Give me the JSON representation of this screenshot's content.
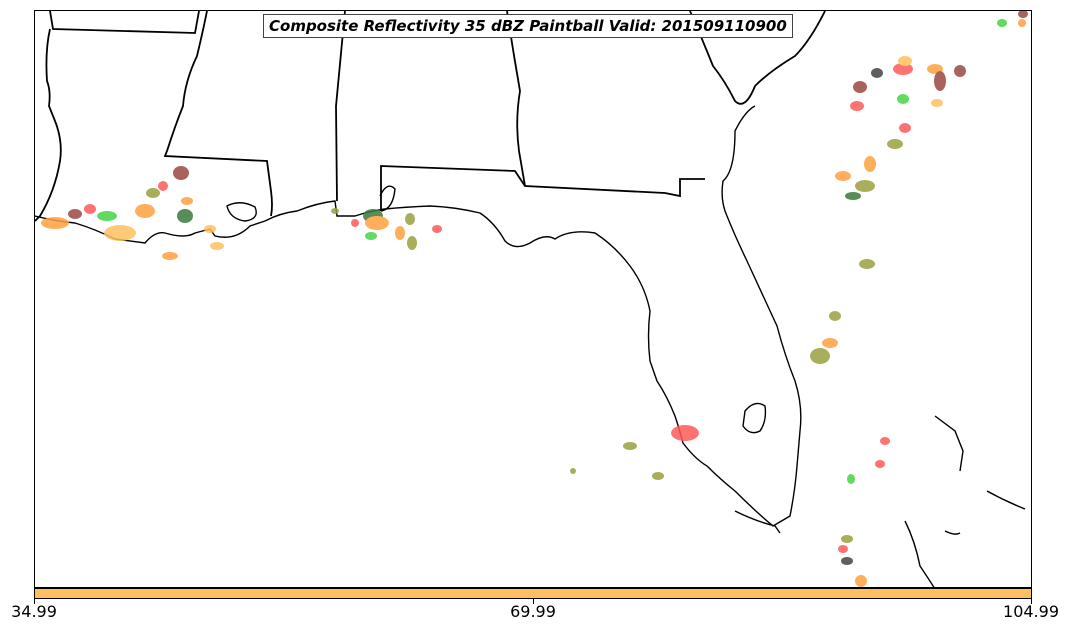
{
  "title": "Composite Reflectivity 35 dBZ Paintball Valid: 201509110900",
  "colorbar": {
    "color": "#fcbf63",
    "ticks": [
      "34.99",
      "69.99",
      "104.99"
    ]
  },
  "colors": {
    "coastline": "#000000",
    "red": "#ff5a5a",
    "orange": "#ffa040",
    "light_orange": "#ffc060",
    "green": "#45d445",
    "olive": "#9aa040",
    "brown": "#9a4a40",
    "dark_green": "#3a7a3a",
    "dark_gray": "#444444"
  }
}
